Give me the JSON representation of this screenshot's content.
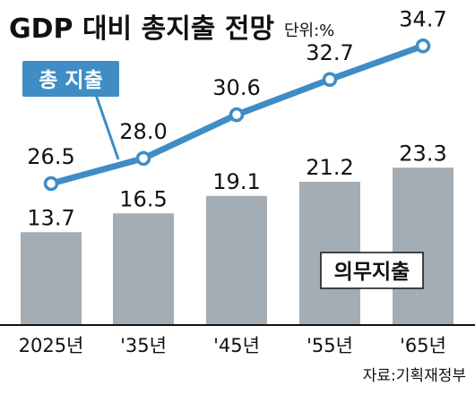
{
  "chart_data": {
    "type": "bar+line",
    "title": "GDP 대비 총지출 전망",
    "unit": "단위:%",
    "categories": [
      "2025년",
      "'35년",
      "'45년",
      "'55년",
      "'65년"
    ],
    "series": [
      {
        "name": "의무지출",
        "type": "bar",
        "values": [
          13.7,
          16.5,
          19.1,
          21.2,
          23.3
        ]
      },
      {
        "name": "총 지출",
        "type": "line",
        "values": [
          26.5,
          28.0,
          30.6,
          32.7,
          34.7
        ]
      }
    ],
    "source": "자료:기획재정부",
    "colors": {
      "bar": "#a4adb3",
      "line": "#3f8dc4",
      "label_box": "#3f8dc4",
      "text": "#111111"
    }
  }
}
